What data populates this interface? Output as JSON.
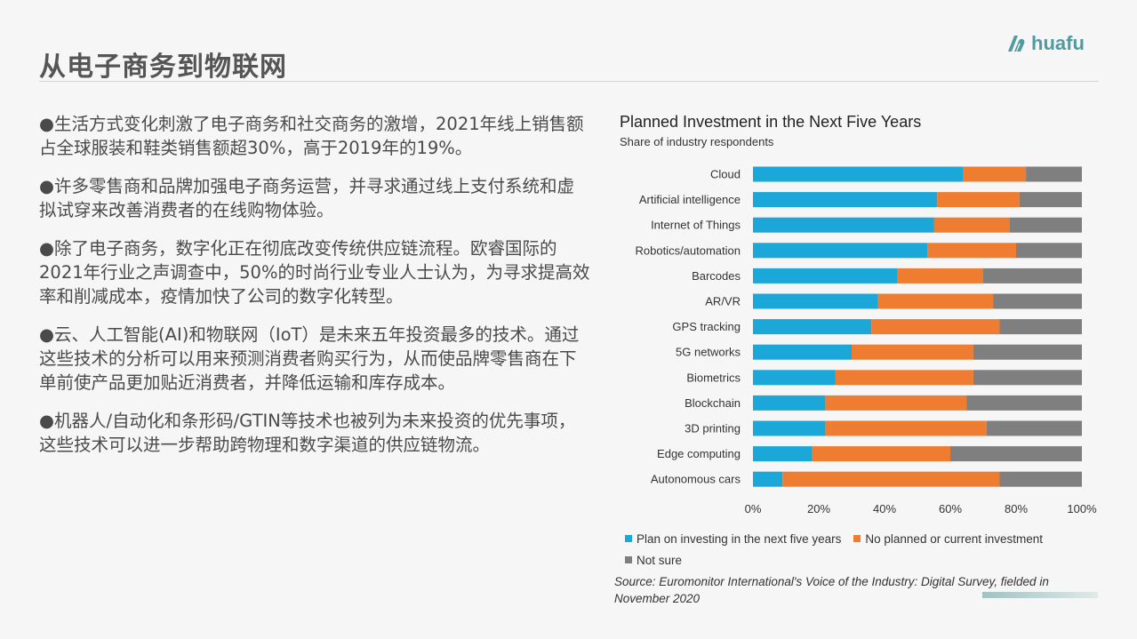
{
  "page": {
    "title": "从电子商务到物联网",
    "logo_text": "huafu"
  },
  "bullets": [
    "●生活方式变化刺激了电子商务和社交商务的激增，2021年线上销售额占全球服装和鞋类销售额超30%，高于2019年的19%。",
    "●许多零售商和品牌加强电子商务运营，并寻求通过线上支付系统和虚拟试穿来改善消费者的在线购物体验。",
    "●除了电子商务，数字化正在彻底改变传统供应链流程。欧睿国际的2021年行业之声调查中，50%的时尚行业专业人士认为，为寻求提高效率和削减成本，疫情加快了公司的数字化转型。",
    "●云、人工智能(AI)和物联网（IoT）是未来五年投资最多的技术。通过这些技术的分析可以用来预测消费者购买行为，从而使品牌零售商在下单前使产品更加贴近消费者，并降低运输和库存成本。",
    "●机器人/自动化和条形码/GTIN等技术也被列为未来投资的优先事项，这些技术可以进一步帮助跨物理和数字渠道的供应链物流。"
  ],
  "chart_data": {
    "type": "bar",
    "orientation": "horizontal",
    "stacked": true,
    "title": "Planned Investment in the Next Five Years",
    "subtitle": "Share of industry respondents",
    "categories": [
      "Cloud",
      "Artificial intelligence",
      "Internet of Things",
      "Robotics/automation",
      "Barcodes",
      "AR/VR",
      "GPS tracking",
      "5G networks",
      "Biometrics",
      "Blockchain",
      "3D printing",
      "Edge computing",
      "Autonomous cars"
    ],
    "series": [
      {
        "name": "Plan on investing in the next five years",
        "color": "#1ba8d8",
        "values": [
          64,
          56,
          55,
          53,
          44,
          38,
          36,
          30,
          25,
          22,
          22,
          18,
          9
        ]
      },
      {
        "name": "No planned or current investment",
        "color": "#ee7d31",
        "values": [
          19,
          25,
          23,
          27,
          26,
          35,
          39,
          37,
          42,
          43,
          49,
          42,
          66
        ]
      },
      {
        "name": "Not sure",
        "color": "#7f7f7f",
        "values": [
          17,
          19,
          22,
          20,
          30,
          27,
          25,
          33,
          33,
          35,
          29,
          40,
          25
        ]
      }
    ],
    "xlim": [
      0,
      100
    ],
    "xticks": [
      "0%",
      "20%",
      "40%",
      "60%",
      "80%",
      "100%"
    ],
    "legend_position": "bottom"
  },
  "source": "Source: Euromonitor International's Voice of the Industry: Digital Survey, fielded in November 2020"
}
